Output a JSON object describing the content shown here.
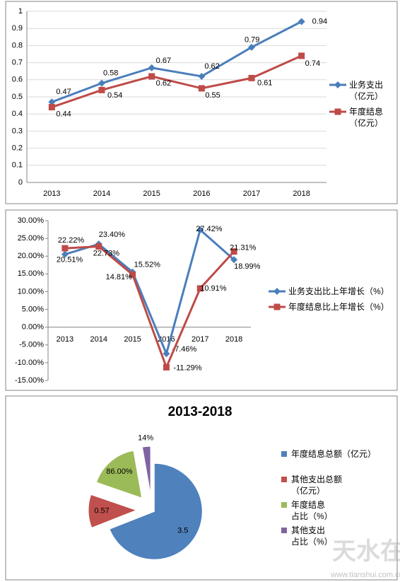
{
  "chart_data": [
    {
      "type": "line",
      "categories": [
        "2013",
        "2014",
        "2015",
        "2016",
        "2017",
        "2018"
      ],
      "series": [
        {
          "name": "业务支出（亿元）",
          "color": "#4a7ebb",
          "marker": "diamond",
          "values": [
            0.47,
            0.58,
            0.67,
            0.62,
            0.79,
            0.94
          ]
        },
        {
          "name": "年度结息（亿元）",
          "color": "#be4b48",
          "marker": "square",
          "values": [
            0.44,
            0.54,
            0.62,
            0.55,
            0.61,
            0.74
          ]
        }
      ],
      "ylim": [
        0,
        1
      ],
      "yticks": [
        0,
        0.1,
        0.2,
        0.3,
        0.4,
        0.5,
        0.6,
        0.7,
        0.8,
        0.9,
        1
      ],
      "grid": true,
      "legend": "right"
    },
    {
      "type": "line",
      "categories": [
        "2013",
        "2014",
        "2015",
        "2016",
        "2017",
        "2018"
      ],
      "series": [
        {
          "name": "业务支出比上年增长（%）",
          "color": "#4a7ebb",
          "marker": "diamond",
          "values": [
            20.51,
            23.4,
            15.52,
            -7.46,
            27.42,
            18.99
          ],
          "value_labels": [
            "20.51%",
            "23.40%",
            "15.52%",
            "-7.46%",
            "27.42%",
            "18.99%"
          ]
        },
        {
          "name": "年度结息比上年增长（%）",
          "color": "#be4b48",
          "marker": "square",
          "values": [
            22.22,
            22.73,
            14.81,
            -11.29,
            10.91,
            21.31
          ],
          "value_labels": [
            "22.22%",
            "22.73%",
            "14.81%",
            "-11.29%",
            "10.91%",
            "21.31%"
          ]
        }
      ],
      "ylim": [
        -15,
        30
      ],
      "yticks": [
        {
          "value": 30,
          "label": "30.00%"
        },
        {
          "value": 25,
          "label": "25.00%"
        },
        {
          "value": 20,
          "label": "20.00%"
        },
        {
          "value": 15,
          "label": "15.00%"
        },
        {
          "value": 10,
          "label": "10.00%"
        },
        {
          "value": 5,
          "label": "5.00%"
        },
        {
          "value": 0,
          "label": "0.00%"
        },
        {
          "value": -5,
          "label": "-5.00%"
        },
        {
          "value": -10,
          "label": "-10.00%"
        },
        {
          "value": -15,
          "label": "-15.00%"
        }
      ],
      "grid": false,
      "legend": "right"
    },
    {
      "type": "pie",
      "title": "2013-2018",
      "categories": [
        "年度结息总额（亿元）",
        "其他支出总额（亿元）",
        "年度结息占比（%）",
        "其他支出占比（%）"
      ],
      "values": [
        3.5,
        0.57,
        0.86,
        0.14
      ],
      "value_labels": [
        "3.5",
        "0.57",
        "86.00%",
        "14%"
      ],
      "colors": [
        "#4f81bd",
        "#c0504d",
        "#9bbb59",
        "#8064a2"
      ],
      "legend": "right"
    }
  ],
  "watermark": {
    "text": "天水在线",
    "url": "www.tianshui.com.cn"
  }
}
